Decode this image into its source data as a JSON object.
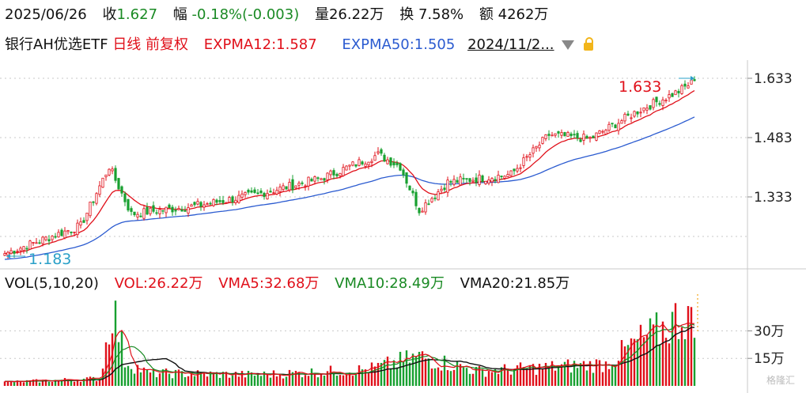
{
  "info": {
    "date": "2025/06/26",
    "close_label": "收",
    "close_value": "1.627",
    "change_label": "幅",
    "change_value": "-0.18%(-0.003)",
    "volume_label": "量",
    "volume_value": "26.22万",
    "turnover_label": "换",
    "turnover_value": "7.58%",
    "amount_label": "额",
    "amount_value": "4262万"
  },
  "title": {
    "name": "银行AH优选ETF",
    "period": "日线",
    "adjust": "前复权",
    "expma12": "EXPMA12:1.587",
    "expma50": "EXPMA50:1.505",
    "date_selector": "2024/11/2..."
  },
  "volume_header": {
    "name": "VOL(5,10,20)",
    "vol": "VOL:26.22万",
    "vma5": "VMA5:32.68万",
    "vma10": "VMA10:28.49万",
    "vma20": "VMA20:21.85万"
  },
  "watermark": "格隆汇",
  "colors": {
    "up": "#e0101a",
    "down": "#18a030",
    "expma12": "#e0101a",
    "expma50": "#2b5bd0",
    "vma5": "#e0101a",
    "vma10": "#1a8a24",
    "vma20": "#111111",
    "annotation": "#2aa0c8"
  },
  "chart_data": [
    {
      "type": "candlestick",
      "y_ticks": [
        "1.633",
        "1.483",
        "1.333"
      ],
      "ylim": [
        1.155,
        1.675
      ],
      "high_label": "1.633",
      "low_label": "1.183",
      "high_value": 1.633,
      "low_value": 1.183,
      "x_range": [
        "2024/11/2...",
        "2025/06/26"
      ],
      "key_closes": [
        {
          "index": 0,
          "close": 1.19
        },
        {
          "index": 24,
          "close": 1.26
        },
        {
          "index": 33,
          "close": 1.41
        },
        {
          "index": 40,
          "close": 1.29
        },
        {
          "index": 60,
          "close": 1.31
        },
        {
          "index": 80,
          "close": 1.34
        },
        {
          "index": 100,
          "close": 1.38
        },
        {
          "index": 118,
          "close": 1.44
        },
        {
          "index": 125,
          "close": 1.41
        },
        {
          "index": 131,
          "close": 1.3
        },
        {
          "index": 140,
          "close": 1.37
        },
        {
          "index": 160,
          "close": 1.39
        },
        {
          "index": 172,
          "close": 1.49
        },
        {
          "index": 185,
          "close": 1.48
        },
        {
          "index": 200,
          "close": 1.55
        },
        {
          "index": 213,
          "close": 1.6
        },
        {
          "index": 218,
          "close": 1.627
        }
      ],
      "series": [
        {
          "name": "EXPMA12",
          "last": 1.587
        },
        {
          "name": "EXPMA50",
          "last": 1.505
        }
      ]
    },
    {
      "type": "bar",
      "y_ticks": [
        "30万",
        "15万"
      ],
      "unit": "万",
      "ylim": [
        0,
        50
      ],
      "key_volumes": [
        {
          "index": 0,
          "value": 2
        },
        {
          "index": 30,
          "value": 4
        },
        {
          "index": 32,
          "value": 22
        },
        {
          "index": 34,
          "value": 44
        },
        {
          "index": 36,
          "value": 30
        },
        {
          "index": 38,
          "value": 14
        },
        {
          "index": 45,
          "value": 7
        },
        {
          "index": 80,
          "value": 6
        },
        {
          "index": 115,
          "value": 9
        },
        {
          "index": 131,
          "value": 16
        },
        {
          "index": 150,
          "value": 8
        },
        {
          "index": 190,
          "value": 12
        },
        {
          "index": 200,
          "value": 24
        },
        {
          "index": 206,
          "value": 29
        },
        {
          "index": 212,
          "value": 36
        },
        {
          "index": 216,
          "value": 40
        },
        {
          "index": 218,
          "value": 26.22
        }
      ],
      "series": [
        {
          "name": "VOL",
          "last": 26.22
        },
        {
          "name": "VMA5",
          "last": 32.68
        },
        {
          "name": "VMA10",
          "last": 28.49
        },
        {
          "name": "VMA20",
          "last": 21.85
        }
      ]
    }
  ]
}
